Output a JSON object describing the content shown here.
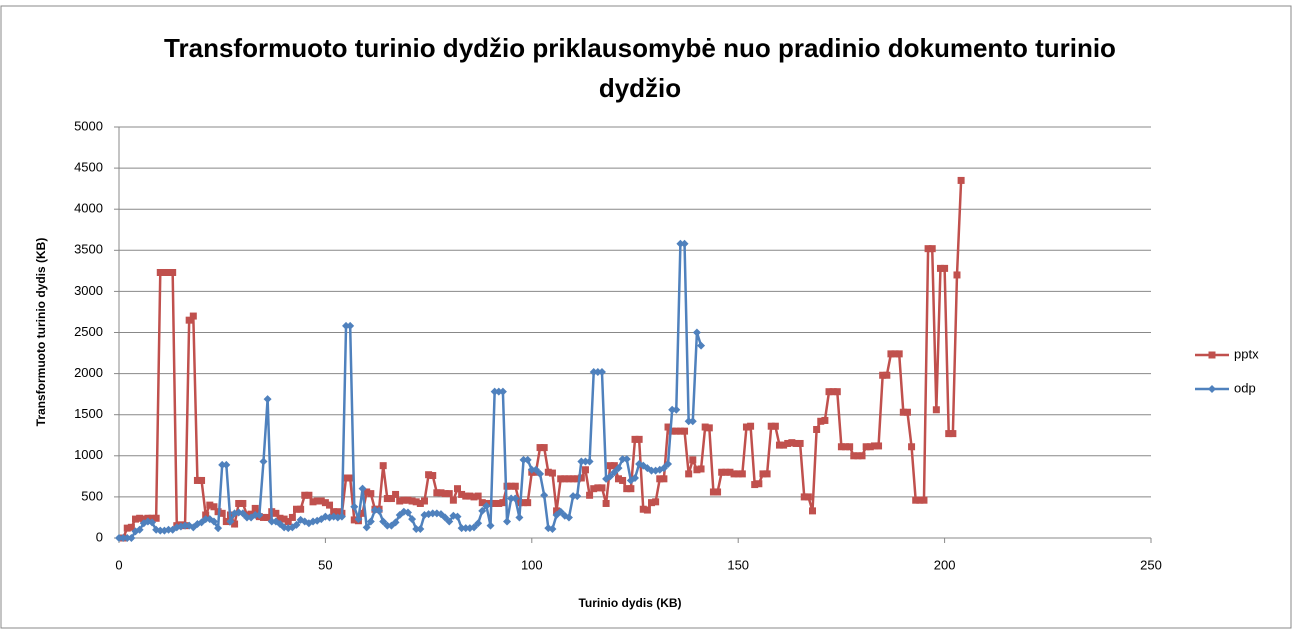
{
  "chart_data": {
    "type": "line",
    "title": "Transformuoto turinio dydžio priklausomybė nuo pradinio dokumento turinio dydžio",
    "xlabel": "Turinio dydis (KB)",
    "ylabel": "Transformuoto turinio dydis (KB)",
    "xlim": [
      0,
      250
    ],
    "xticks": [
      0,
      50,
      100,
      150,
      200,
      250
    ],
    "ylim": [
      0,
      5000
    ],
    "yticks": [
      0,
      500,
      1000,
      1500,
      2000,
      2500,
      3000,
      3500,
      4000,
      4500,
      5000
    ],
    "grid": true,
    "legend": "right",
    "series": [
      {
        "name": "pptx",
        "color": "#C0504D",
        "marker": "square",
        "x": [
          1,
          2,
          3,
          4,
          5,
          6,
          7,
          8,
          9,
          10,
          11,
          12,
          13,
          14,
          15,
          16,
          17,
          18,
          19,
          20,
          21,
          22,
          23,
          24,
          25,
          26,
          27,
          28,
          29,
          30,
          31,
          32,
          33,
          34,
          35,
          36,
          37,
          38,
          39,
          40,
          41,
          42,
          43,
          44,
          45,
          46,
          47,
          48,
          49,
          50,
          51,
          52,
          53,
          54,
          55,
          56,
          57,
          58,
          59,
          60,
          61,
          62,
          63,
          64,
          65,
          66,
          67,
          68,
          69,
          70,
          71,
          72,
          73,
          74,
          75,
          76,
          77,
          78,
          79,
          80,
          81,
          82,
          83,
          84,
          85,
          86,
          87,
          88,
          89,
          90,
          91,
          92,
          93,
          94,
          95,
          96,
          97,
          98,
          99,
          100,
          101,
          102,
          103,
          104,
          105,
          106,
          107,
          108,
          109,
          110,
          111,
          112,
          113,
          114,
          115,
          116,
          117,
          118,
          119,
          120,
          121,
          122,
          123,
          124,
          125,
          126,
          127,
          128,
          129,
          130,
          131,
          132,
          133,
          134,
          135,
          136,
          137,
          138,
          139,
          140,
          141,
          142,
          143,
          144,
          145,
          146,
          147,
          148,
          149,
          150,
          151,
          152,
          153,
          154,
          155,
          156,
          157,
          158,
          159,
          160,
          161,
          162,
          163,
          164,
          165,
          166,
          167,
          168,
          169,
          170,
          171,
          172,
          173,
          174,
          175,
          176,
          177,
          178,
          179,
          180,
          181,
          182,
          183,
          184,
          185,
          186,
          187,
          188,
          189,
          190,
          191,
          192,
          193,
          194,
          195,
          196,
          197,
          198,
          199,
          200,
          201,
          202,
          203,
          204
        ],
        "values": [
          0,
          120,
          130,
          230,
          240,
          230,
          240,
          240,
          240,
          3230,
          3230,
          3230,
          3230,
          150,
          160,
          150,
          2650,
          2700,
          700,
          700,
          280,
          400,
          380,
          320,
          300,
          200,
          280,
          170,
          420,
          420,
          280,
          290,
          360,
          260,
          250,
          250,
          320,
          300,
          240,
          230,
          200,
          250,
          350,
          350,
          520,
          520,
          440,
          450,
          450,
          430,
          400,
          320,
          320,
          300,
          730,
          730,
          220,
          210,
          300,
          560,
          540,
          350,
          350,
          880,
          480,
          480,
          530,
          450,
          460,
          460,
          450,
          440,
          420,
          450,
          770,
          760,
          550,
          550,
          540,
          540,
          460,
          600,
          530,
          510,
          510,
          500,
          510,
          430,
          420,
          420,
          420,
          420,
          430,
          630,
          630,
          630,
          430,
          430,
          430,
          800,
          800,
          1100,
          1100,
          800,
          790,
          330,
          720,
          720,
          720,
          720,
          720,
          730,
          830,
          520,
          600,
          610,
          610,
          420,
          880,
          880,
          720,
          700,
          600,
          600,
          1200,
          1200,
          350,
          340,
          430,
          440,
          720,
          720,
          1350,
          1300,
          1300,
          1300,
          1300,
          780,
          950,
          830,
          840,
          1350,
          1340,
          560,
          560,
          800,
          800,
          800,
          780,
          780,
          780,
          1350,
          1360,
          650,
          660,
          780,
          780,
          1360,
          1360,
          1130,
          1130,
          1150,
          1160,
          1150,
          1150,
          500,
          500,
          330,
          1320,
          1420,
          1430,
          1780,
          1780,
          1780,
          1110,
          1110,
          1110,
          1000,
          1000,
          1000,
          1110,
          1110,
          1120,
          1120,
          1980,
          1980,
          2240,
          2240,
          2240,
          1530,
          1530,
          1110,
          460,
          460,
          460,
          3520,
          3520,
          1560,
          3280,
          3280,
          1270,
          1270,
          3200,
          4350
        ]
      },
      {
        "name": "odp",
        "color": "#4F81BD",
        "marker": "diamond",
        "x": [
          0,
          1,
          2,
          3,
          4,
          5,
          6,
          7,
          8,
          9,
          10,
          11,
          12,
          13,
          14,
          15,
          16,
          17,
          18,
          19,
          20,
          21,
          22,
          23,
          24,
          25,
          26,
          27,
          28,
          29,
          30,
          31,
          32,
          33,
          34,
          35,
          36,
          37,
          38,
          39,
          40,
          41,
          42,
          43,
          44,
          45,
          46,
          47,
          48,
          49,
          50,
          51,
          52,
          53,
          54,
          55,
          56,
          57,
          58,
          59,
          60,
          61,
          62,
          63,
          64,
          65,
          66,
          67,
          68,
          69,
          70,
          71,
          72,
          73,
          74,
          75,
          76,
          77,
          78,
          79,
          80,
          81,
          82,
          83,
          84,
          85,
          86,
          87,
          88,
          89,
          90,
          91,
          92,
          93,
          94,
          95,
          96,
          97,
          98,
          99,
          100,
          101,
          102,
          103,
          104,
          105,
          106,
          107,
          108,
          109,
          110,
          111,
          112,
          113,
          114,
          115,
          116,
          117,
          118,
          119,
          120,
          121,
          122,
          123,
          124,
          125,
          126,
          127,
          128,
          129,
          130,
          131,
          132,
          133,
          134,
          135,
          136,
          137,
          138,
          139,
          140,
          141
        ],
        "values": [
          0,
          0,
          0,
          0,
          80,
          100,
          180,
          200,
          190,
          100,
          90,
          90,
          100,
          100,
          130,
          140,
          150,
          150,
          130,
          170,
          190,
          230,
          230,
          200,
          120,
          890,
          890,
          200,
          300,
          310,
          300,
          250,
          250,
          280,
          280,
          930,
          1690,
          200,
          200,
          170,
          130,
          120,
          130,
          160,
          220,
          200,
          180,
          200,
          210,
          230,
          260,
          250,
          260,
          250,
          260,
          2580,
          2580,
          380,
          230,
          600,
          130,
          200,
          340,
          330,
          200,
          150,
          150,
          190,
          280,
          320,
          310,
          230,
          110,
          110,
          280,
          290,
          300,
          300,
          290,
          250,
          200,
          270,
          260,
          120,
          120,
          120,
          130,
          180,
          330,
          390,
          150,
          1780,
          1780,
          1780,
          200,
          480,
          480,
          250,
          950,
          950,
          830,
          830,
          780,
          520,
          120,
          110,
          280,
          320,
          270,
          250,
          510,
          510,
          930,
          930,
          930,
          2020,
          2020,
          2020,
          720,
          750,
          800,
          850,
          960,
          960,
          700,
          730,
          900,
          880,
          850,
          820,
          820,
          830,
          850,
          900,
          1560,
          1560,
          3580,
          3580,
          1420,
          1420,
          2500,
          2340
        ]
      }
    ]
  }
}
